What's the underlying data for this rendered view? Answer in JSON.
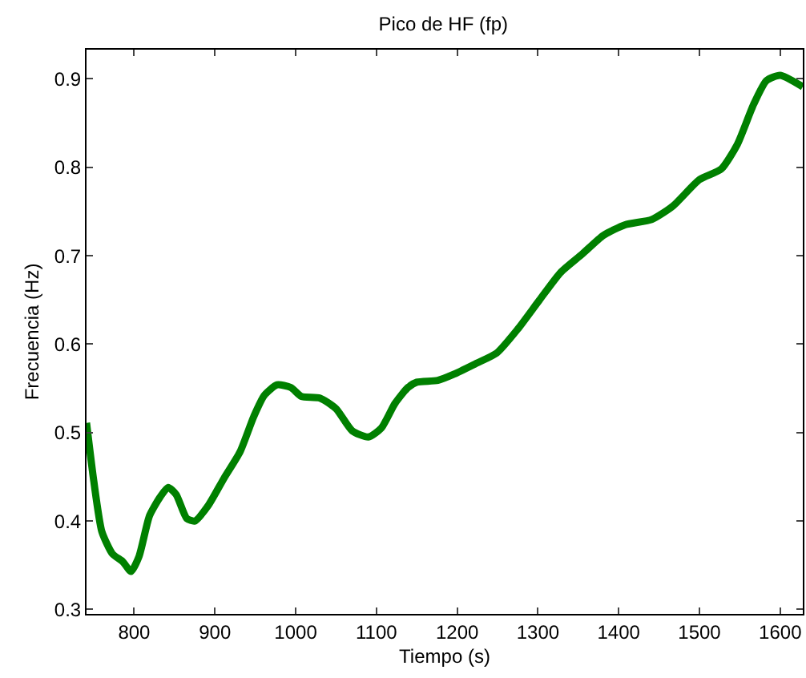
{
  "chart_data": {
    "type": "line",
    "title": "Pico de HF (fp)",
    "xlabel": "Tiempo (s)",
    "ylabel": "Frecuencia (Hz)",
    "xlim": [
      741,
      1628
    ],
    "ylim": [
      0.295,
      0.933
    ],
    "xticks": [
      800,
      900,
      1000,
      1100,
      1200,
      1300,
      1400,
      1500,
      1600
    ],
    "yticks": [
      0.3,
      0.4,
      0.5,
      0.6,
      0.7,
      0.8,
      0.9
    ],
    "grid": false,
    "marker": "none",
    "line_style": "solid",
    "x": [
      741,
      750,
      760,
      773,
      786,
      796,
      806,
      819,
      832,
      842,
      852,
      865,
      875,
      892,
      911,
      931,
      948,
      961,
      977,
      994,
      1007,
      1030,
      1050,
      1070,
      1090,
      1106,
      1123,
      1139,
      1150,
      1176,
      1196,
      1223,
      1249,
      1275,
      1302,
      1328,
      1355,
      1381,
      1408,
      1441,
      1467,
      1500,
      1527,
      1547,
      1567,
      1583,
      1600,
      1628
    ],
    "series": [
      {
        "color": "#008000",
        "values": [
          0.511,
          0.445,
          0.388,
          0.363,
          0.354,
          0.343,
          0.36,
          0.406,
          0.427,
          0.438,
          0.43,
          0.403,
          0.4,
          0.418,
          0.448,
          0.478,
          0.518,
          0.542,
          0.554,
          0.551,
          0.541,
          0.539,
          0.527,
          0.502,
          0.495,
          0.505,
          0.533,
          0.551,
          0.557,
          0.559,
          0.566,
          0.578,
          0.59,
          0.617,
          0.65,
          0.681,
          0.702,
          0.723,
          0.735,
          0.741,
          0.756,
          0.786,
          0.798,
          0.826,
          0.871,
          0.898,
          0.904,
          0.891
        ]
      }
    ]
  }
}
